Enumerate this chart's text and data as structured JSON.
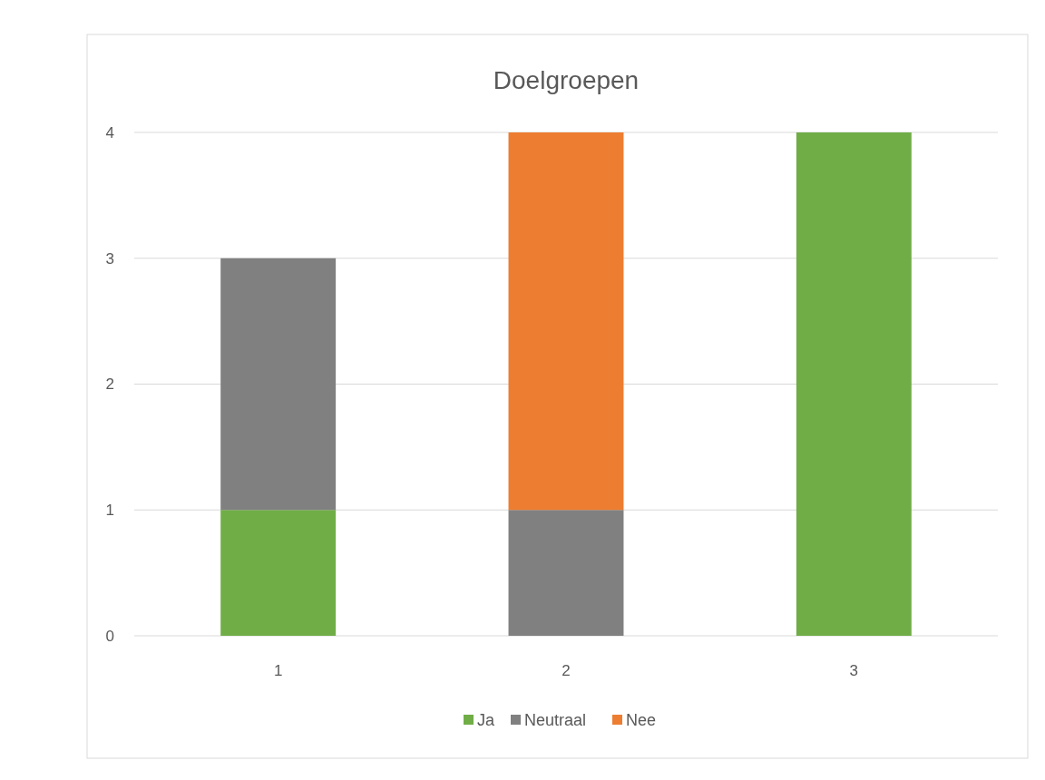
{
  "chart_data": {
    "type": "bar",
    "title": "Doelgroepen",
    "categories": [
      "1",
      "2",
      "3"
    ],
    "stacked": true,
    "series": [
      {
        "name": "Ja",
        "color": "#70ad47",
        "values": [
          1,
          0,
          4
        ]
      },
      {
        "name": "Neutraal",
        "color": "#808080",
        "values": [
          2,
          1,
          0
        ]
      },
      {
        "name": "Nee",
        "color": "#ed7d31",
        "values": [
          0,
          3,
          0
        ]
      }
    ],
    "ylim": [
      0,
      4
    ],
    "yticks": [
      0,
      1,
      2,
      3,
      4
    ],
    "grid": "y",
    "legend": "bottom"
  }
}
